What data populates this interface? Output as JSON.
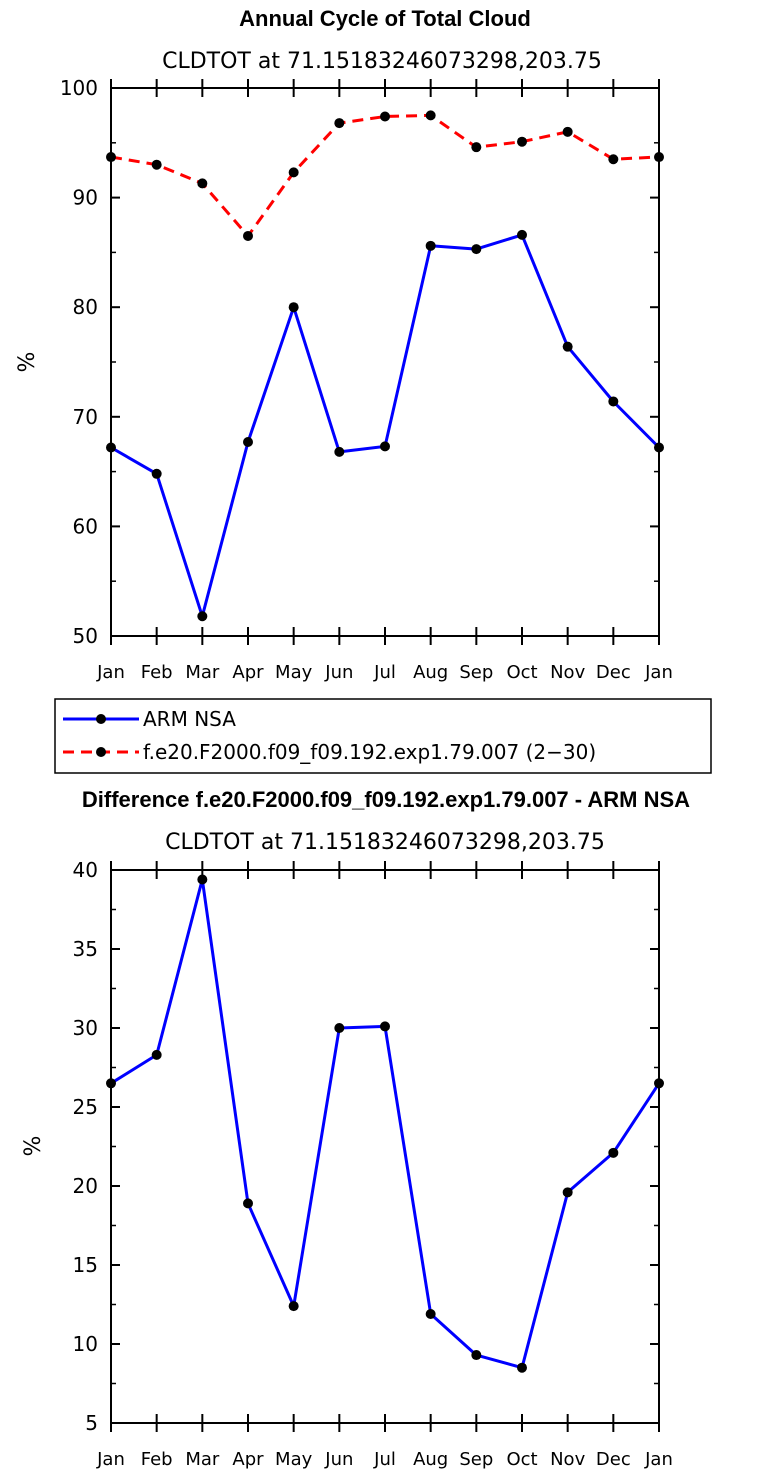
{
  "chart_data": [
    {
      "type": "line",
      "title": "Annual Cycle of Total Cloud",
      "subtitle": "CLDTOT at 71.15183246073298,203.75",
      "xlabel": "",
      "ylabel": "%",
      "categories": [
        "Jan",
        "Feb",
        "Mar",
        "Apr",
        "May",
        "Jun",
        "Jul",
        "Aug",
        "Sep",
        "Oct",
        "Nov",
        "Dec",
        "Jan"
      ],
      "ylim": [
        50,
        100
      ],
      "yticks": [
        "50",
        "60",
        "70",
        "80",
        "90",
        "100"
      ],
      "series": [
        {
          "name": "ARM NSA",
          "color": "#0000ff",
          "dash": "solid",
          "values": [
            67.2,
            64.8,
            51.8,
            67.7,
            80.0,
            66.8,
            67.3,
            85.6,
            85.3,
            86.6,
            76.4,
            71.4,
            67.2
          ]
        },
        {
          "name": "f.e20.F2000.f09_f09.192.exp1.79.007 (2−30)",
          "color": "#ff0000",
          "dash": "dashed",
          "values": [
            93.7,
            93.0,
            91.3,
            86.5,
            92.3,
            96.8,
            97.4,
            97.5,
            94.6,
            95.1,
            96.0,
            93.5,
            93.7
          ]
        }
      ],
      "legend": "below"
    },
    {
      "type": "line",
      "title": "Difference f.e20.F2000.f09_f09.192.exp1.79.007 - ARM NSA",
      "subtitle": "CLDTOT at 71.15183246073298,203.75",
      "xlabel": "",
      "ylabel": "%",
      "categories": [
        "Jan",
        "Feb",
        "Mar",
        "Apr",
        "May",
        "Jun",
        "Jul",
        "Aug",
        "Sep",
        "Oct",
        "Nov",
        "Dec",
        "Jan"
      ],
      "ylim": [
        5,
        40
      ],
      "yticks": [
        "5",
        "10",
        "15",
        "20",
        "25",
        "30",
        "35",
        "40"
      ],
      "series": [
        {
          "name": "Difference",
          "color": "#0000ff",
          "dash": "solid",
          "values": [
            26.5,
            28.3,
            39.4,
            18.9,
            12.4,
            30.0,
            30.1,
            11.9,
            9.3,
            8.5,
            19.6,
            22.1,
            26.5
          ]
        }
      ]
    }
  ]
}
